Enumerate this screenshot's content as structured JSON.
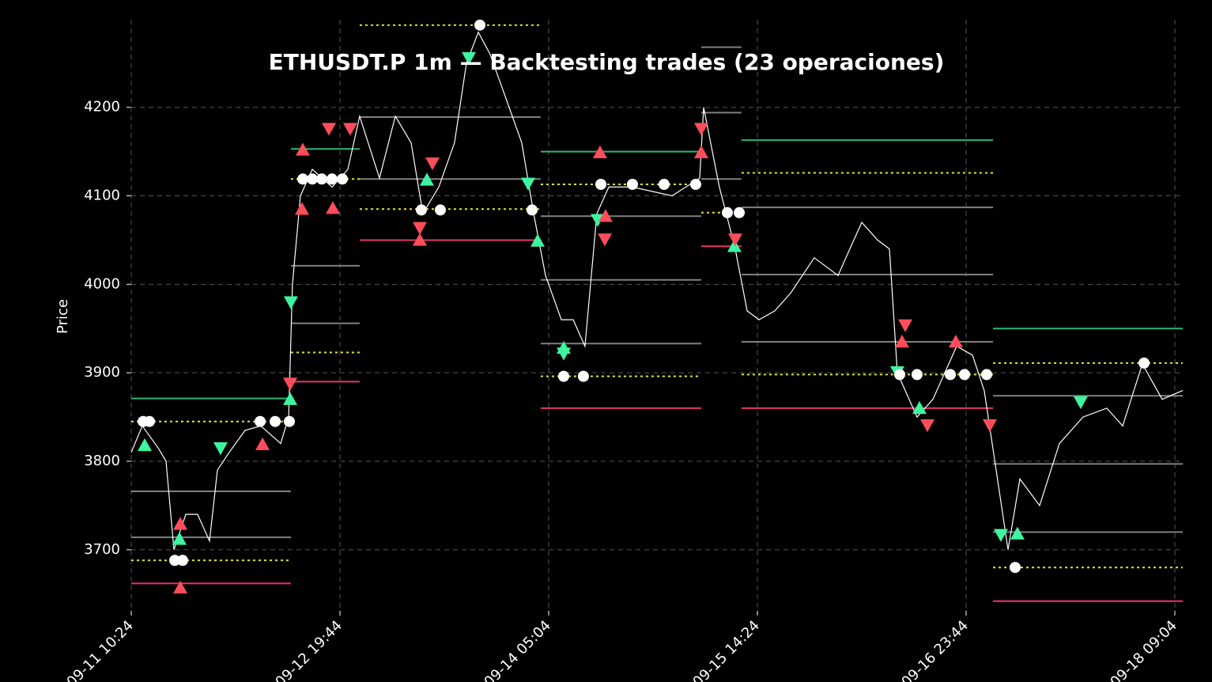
{
  "chart_data": {
    "type": "line",
    "title": "ETHUSDT.P 1m — Backtesting trades (23 operaciones)",
    "y_label": "Price",
    "xlim": [
      0,
      10076
    ],
    "ylim": [
      3631,
      4299
    ],
    "yticks": [
      3700,
      3800,
      3900,
      4000,
      4100,
      4200
    ],
    "xticks": [
      {
        "value": 0,
        "label": "09-11 10:24"
      },
      {
        "value": 2000,
        "label": "09-12 19:44"
      },
      {
        "value": 4000,
        "label": "09-14 05:04"
      },
      {
        "value": 6000,
        "label": "09-15 14:24"
      },
      {
        "value": 8000,
        "label": "09-16 23:44"
      },
      {
        "value": 10000,
        "label": "09-18 09:04"
      }
    ],
    "grid": true,
    "background": "#000000",
    "series": [
      {
        "color": "#ffffff",
        "x": [
          0,
          106,
          258,
          333,
          409,
          523,
          636,
          750,
          826,
          939,
          1091,
          1242,
          1432,
          1508,
          1545,
          1621,
          1735,
          1924,
          2076,
          2189,
          2379,
          2530,
          2682,
          2795,
          2947,
          3098,
          3212,
          3326,
          3439,
          3591,
          3742,
          3856,
          3970,
          4121,
          4235,
          4348,
          4462,
          4576,
          4803,
          5182,
          5447,
          5485,
          5636,
          5788,
          5902,
          6015,
          6167,
          6318,
          6545,
          6773,
          6886,
          7000,
          7152,
          7265,
          7341,
          7530,
          7682,
          7909,
          8061,
          8174,
          8288,
          8402,
          8515,
          8705,
          8894,
          9121,
          9348,
          9500,
          9689,
          9879,
          10076
        ],
        "values": [
          3810,
          3840,
          3815,
          3800,
          3700,
          3740,
          3740,
          3710,
          3790,
          3810,
          3835,
          3840,
          3820,
          3850,
          4000,
          4100,
          4130,
          4110,
          4130,
          4190,
          4120,
          4190,
          4160,
          4080,
          4110,
          4160,
          4250,
          4285,
          4260,
          4210,
          4160,
          4080,
          4010,
          3960,
          3960,
          3930,
          4080,
          4110,
          4110,
          4100,
          4120,
          4200,
          4110,
          4040,
          3970,
          3960,
          3970,
          3990,
          4030,
          4010,
          4040,
          4070,
          4050,
          4040,
          3900,
          3850,
          3870,
          3930,
          3920,
          3880,
          3790,
          3700,
          3780,
          3750,
          3820,
          3850,
          3860,
          3840,
          3910,
          3870,
          3880
        ]
      }
    ],
    "levels": [
      {
        "color": "#2bb673",
        "dash": false,
        "segments": [
          [
            0,
            1530,
            3871
          ],
          [
            1530,
            2189,
            4153
          ],
          [
            3924,
            5462,
            4150
          ],
          [
            5848,
            8258,
            4163
          ],
          [
            8258,
            10076,
            3950
          ]
        ]
      },
      {
        "color": "#e8336a",
        "dash": false,
        "segments": [
          [
            0,
            1530,
            3662
          ],
          [
            1530,
            2189,
            3890
          ],
          [
            2189,
            3924,
            4050
          ],
          [
            3924,
            5462,
            3860
          ],
          [
            5462,
            5848,
            4043
          ],
          [
            5848,
            8258,
            3860
          ],
          [
            8258,
            10076,
            3642
          ]
        ]
      },
      {
        "color": "#e6e62e",
        "dash": true,
        "segments": [
          [
            0,
            1530,
            3688
          ],
          [
            0,
            1530,
            3845
          ],
          [
            1530,
            2189,
            3923
          ],
          [
            1530,
            2189,
            4119
          ],
          [
            2189,
            3924,
            4085
          ],
          [
            2189,
            3924,
            4293
          ],
          [
            3924,
            5462,
            4113
          ],
          [
            3924,
            5462,
            3896
          ],
          [
            5462,
            5848,
            4081
          ],
          [
            5848,
            8258,
            4126
          ],
          [
            5848,
            8258,
            3898
          ],
          [
            8258,
            10076,
            3911
          ],
          [
            8258,
            10076,
            3680
          ]
        ]
      },
      {
        "color": "#808080",
        "dash": false,
        "segments": [
          [
            0,
            1530,
            3766
          ],
          [
            0,
            1530,
            3714
          ],
          [
            1530,
            2189,
            4021
          ],
          [
            1530,
            2189,
            3956
          ],
          [
            2189,
            3924,
            4189
          ],
          [
            2189,
            3924,
            4119
          ],
          [
            3924,
            5462,
            4077
          ],
          [
            3924,
            5462,
            4005
          ],
          [
            3924,
            5462,
            3933
          ],
          [
            5462,
            5848,
            4194
          ],
          [
            5462,
            5848,
            4268
          ],
          [
            5462,
            5848,
            4119
          ],
          [
            5848,
            8258,
            4087
          ],
          [
            5848,
            8258,
            4011
          ],
          [
            5848,
            8258,
            3935
          ],
          [
            8258,
            10076,
            3874
          ],
          [
            8258,
            10076,
            3797
          ],
          [
            8258,
            10076,
            3720
          ]
        ]
      }
    ],
    "markers": [
      {
        "shape": "triangle-up",
        "color": "#3df5a0",
        "x": [
          129,
          462,
          1523,
          2833,
          3894,
          4144,
          5780,
          7553,
          8492
        ],
        "values": [
          3818,
          3712,
          3870,
          4118,
          4049,
          3928,
          4043,
          3860,
          3718
        ]
      },
      {
        "shape": "triangle-down",
        "color": "#3df5a0",
        "x": [
          1530,
          856,
          3235,
          3803,
          4144,
          4470,
          7341,
          8333,
          9098
        ],
        "values": [
          3980,
          3815,
          4256,
          4114,
          3922,
          4073,
          3901,
          3717,
          3867
        ]
      },
      {
        "shape": "triangle-up",
        "color": "#ff4d5a",
        "x": [
          1644,
          1636,
          1932,
          2765,
          4492,
          4545,
          5462,
          7386,
          7901,
          470,
          470,
          1258
        ],
        "values": [
          4152,
          4085,
          4086,
          4050,
          4149,
          4077,
          4149,
          3935,
          3935,
          3729,
          3657,
          3819
        ]
      },
      {
        "shape": "triangle-down",
        "color": "#ff4d5a",
        "x": [
          1894,
          2098,
          2765,
          2886,
          4538,
          5462,
          5788,
          7417,
          7629,
          8227,
          1523
        ],
        "values": [
          4176,
          4176,
          4064,
          4137,
          4051,
          4176,
          4051,
          3954,
          3841,
          3841,
          3888
        ]
      },
      {
        "shape": "circle",
        "color": "#ffffff",
        "x": [
          114,
          174,
          417,
          492,
          1235,
          1379,
          1515,
          1644,
          1735,
          1826,
          1924,
          2023,
          2780,
          2962,
          3341,
          3841,
          4144,
          4333,
          4500,
          4803,
          5106,
          5409,
          5712,
          5826,
          7364,
          7530,
          7849,
          7985,
          8197,
          8470,
          9705
        ],
        "values": [
          3845,
          3845,
          3688,
          3688,
          3845,
          3845,
          3845,
          4119,
          4119,
          4119,
          4119,
          4119,
          4084,
          4084,
          4293,
          4084,
          3896,
          3896,
          4113,
          4113,
          4113,
          4113,
          4081,
          4081,
          3898,
          3898,
          3898,
          3898,
          3898,
          3680,
          3911
        ]
      }
    ]
  }
}
